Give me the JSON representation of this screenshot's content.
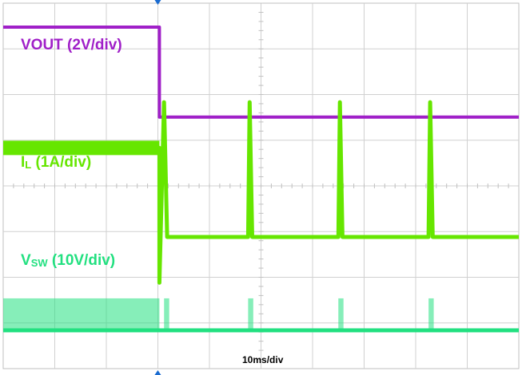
{
  "chart_data": {
    "type": "line",
    "title": "",
    "xlabel": "10ms/div",
    "ylabel": "",
    "grid": true,
    "divisions": {
      "x": 10,
      "y": 8
    },
    "x_unit": "ms",
    "x_per_div": 10,
    "x_range": [
      0,
      100
    ],
    "trigger_time_ms": 30.3,
    "series": [
      {
        "name": "VOUT (2V/div)",
        "name_main": "VOUT (2V/div)",
        "name_sub": "",
        "name_tail": "",
        "color": "#a020c8",
        "scale_per_div": 2,
        "unit": "V",
        "trace": [
          [
            0,
            7.74
          ],
          [
            30.3,
            7.74
          ],
          [
            30.3,
            3.8
          ],
          [
            31.5,
            3.8
          ],
          [
            47.5,
            3.8
          ],
          [
            48.3,
            3.8
          ],
          [
            65,
            3.8
          ],
          [
            66,
            3.8
          ],
          [
            82.5,
            3.8
          ],
          [
            83.5,
            3.8
          ],
          [
            100,
            3.8
          ]
        ]
      },
      {
        "name": "IL (1A/div)",
        "name_main": "I",
        "name_sub": "L",
        "name_tail": " (1A/div)",
        "color": "#66e600",
        "scale_per_div": 1,
        "unit": "A",
        "trace": [
          [
            0,
            2.95
          ],
          [
            30.3,
            2.95
          ],
          [
            30.3,
            0.0
          ],
          [
            31.2,
            3.95
          ],
          [
            31.8,
            1.0
          ],
          [
            47.5,
            1.0
          ],
          [
            47.8,
            3.95
          ],
          [
            48.3,
            1.0
          ],
          [
            65,
            1.0
          ],
          [
            65.3,
            3.95
          ],
          [
            65.8,
            1.0
          ],
          [
            82.5,
            1.0
          ],
          [
            82.8,
            3.95
          ],
          [
            83.3,
            1.0
          ],
          [
            100,
            1.0
          ]
        ]
      },
      {
        "name": "VSW (10V/div)",
        "name_main": "V",
        "name_sub": "SW",
        "name_tail": " (10V/div)",
        "color": "#22e080",
        "scale_per_div": 10,
        "unit": "V",
        "trace": [
          [
            0,
            0.0
          ],
          [
            30.3,
            0.0
          ],
          [
            100,
            0.0
          ]
        ],
        "switching_bursts_ms": [
          [
            0,
            30.3
          ],
          [
            31.2,
            32.2
          ],
          [
            47.5,
            48.5
          ],
          [
            65,
            66
          ],
          [
            82.5,
            83.5
          ]
        ]
      }
    ]
  }
}
